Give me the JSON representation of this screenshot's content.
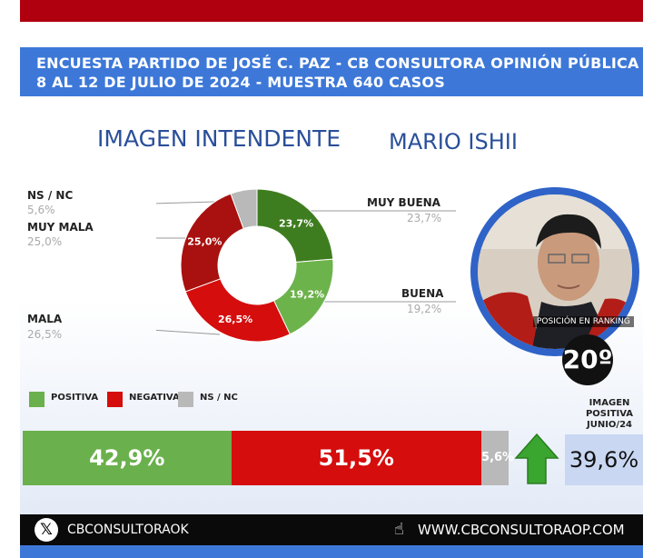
{
  "header": {
    "line1": "ENCUESTA PARTIDO DE JOSÉ C. PAZ - CB CONSULTORA OPINIÓN PÚBLICA",
    "line2": "8 AL 12 DE JULIO DE 2024 - MUESTRA 640 CASOS"
  },
  "titles": {
    "left": "IMAGEN INTENDENTE",
    "right": "MARIO ISHII"
  },
  "chart_data": [
    {
      "type": "pie",
      "variant": "donut",
      "labels": [
        "MUY BUENA",
        "BUENA",
        "MALA",
        "MUY MALA",
        "NS / NC"
      ],
      "values": [
        23.7,
        19.2,
        26.5,
        25.0,
        5.6
      ],
      "display": [
        "23,7%",
        "19,2%",
        "26,5%",
        "25,0%",
        "5,6%"
      ],
      "colors": [
        "#3e7d1f",
        "#6db34c",
        "#d50d0d",
        "#a8110f",
        "#b9b9b9"
      ]
    },
    {
      "type": "bar",
      "variant": "stacked-horizontal",
      "categories": [
        "POSITIVA",
        "NEGATIVA",
        "NS / NC"
      ],
      "values": [
        42.9,
        51.5,
        5.6
      ],
      "display": [
        "42,9%",
        "51,5%",
        "5,6%"
      ],
      "colors": [
        "#6ab04c",
        "#d50d0d",
        "#b9b9b9"
      ]
    }
  ],
  "ranking": {
    "label": "POSICIÓN EN RANKING",
    "value": "20º"
  },
  "imagen_positiva": {
    "title_lines": [
      "IMAGEN",
      "POSITIVA",
      "JUNIO/24"
    ],
    "value": "39,6%",
    "trend": "up",
    "arrow_color": "#3aa52f"
  },
  "footer": {
    "twitter": "CBCONSULTORAOK",
    "web": "WWW.CBCONSULTORAOP.COM"
  },
  "colors": {
    "top_bar": "#b0000f",
    "header_bg": "#3d78d8",
    "title": "#2a4f9a"
  }
}
